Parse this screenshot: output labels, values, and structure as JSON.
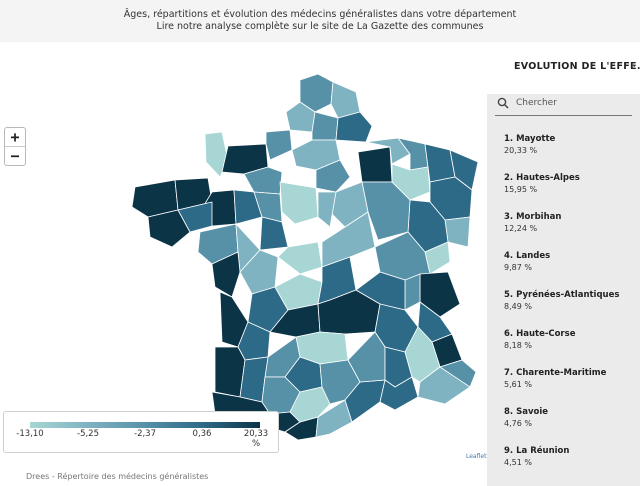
{
  "header": {
    "line1": "Âges, répartitions et évolution des médecins généralistes dans votre département",
    "line2": "Lire notre analyse complète sur le site de La Gazette des communes"
  },
  "zoom": {
    "in_label": "+",
    "out_label": "−"
  },
  "legend": {
    "ticks": [
      "-13,10",
      "-5,25",
      "-2,37",
      "0,36",
      "20,33"
    ],
    "unit": "%",
    "colors": [
      "#a7d6d4",
      "#7fb3c2",
      "#5791a8",
      "#2d6a87",
      "#0c3447"
    ]
  },
  "attribution": "Leaflet",
  "source": "Drees - Répertoire des médecins généralistes",
  "panel": {
    "title": "EVOLUTION DE L'EFFE...",
    "search_placeholder": "Chercher",
    "items": [
      {
        "name": "1. Mayotte",
        "value": "20,33 %"
      },
      {
        "name": "2. Hautes-Alpes",
        "value": "15,95 %"
      },
      {
        "name": "3. Morbihan",
        "value": "12,24 %"
      },
      {
        "name": "4. Landes",
        "value": "9,87 %"
      },
      {
        "name": "5. Pyrénées-Atlantiques",
        "value": "8,49 %"
      },
      {
        "name": "6. Haute-Corse",
        "value": "8,18 %"
      },
      {
        "name": "7. Charente-Maritime",
        "value": "5,61 %"
      },
      {
        "name": "8. Savoie",
        "value": "4,76 %"
      },
      {
        "name": "9. La Réunion",
        "value": "4,51 %"
      }
    ]
  },
  "colors": {
    "border": "#ffffff",
    "panel_bg": "#ebebeb"
  }
}
